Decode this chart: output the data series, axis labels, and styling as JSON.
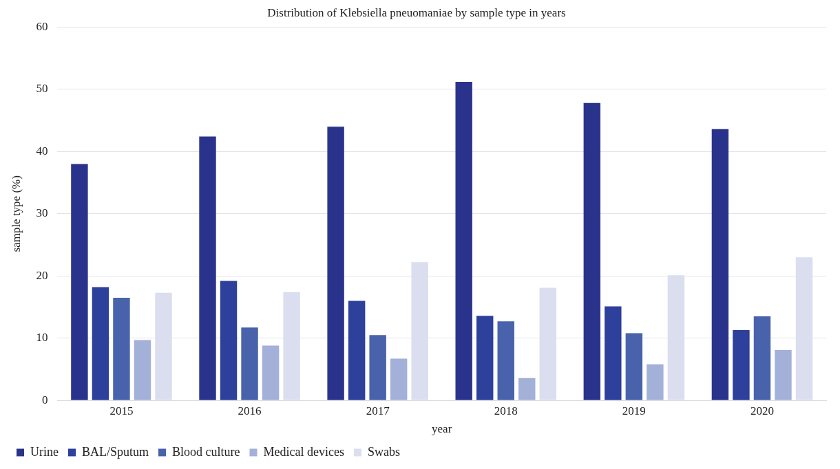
{
  "chart_data": {
    "type": "bar",
    "title": "Distribution of Klebsiella pneuomaniae by sample type in years",
    "xlabel": "year",
    "ylabel": "sample type (%)",
    "categories": [
      "2015",
      "2016",
      "2017",
      "2018",
      "2019",
      "2020"
    ],
    "series": [
      {
        "name": "Urine",
        "color": "#2a338c",
        "values": [
          38,
          42.4,
          44,
          51.2,
          47.8,
          43.6
        ]
      },
      {
        "name": "BAL/Sputum",
        "color": "#2c409c",
        "values": [
          18.2,
          19.2,
          16,
          13.6,
          15.1,
          11.3
        ]
      },
      {
        "name": "Blood culture",
        "color": "#4862ab",
        "values": [
          16.5,
          11.7,
          10.5,
          12.7,
          10.8,
          13.5
        ]
      },
      {
        "name": "Medical devices",
        "color": "#a3b0d8",
        "values": [
          9.7,
          8.8,
          6.7,
          3.6,
          5.8,
          8.1
        ]
      },
      {
        "name": "Swabs",
        "color": "#dadeee",
        "values": [
          17.3,
          17.4,
          22.2,
          18.1,
          20.1,
          23
        ]
      }
    ],
    "ylim": [
      0,
      60
    ],
    "yticks": [
      0,
      10,
      20,
      30,
      40,
      50,
      60
    ],
    "grid": "y",
    "legend": "bottom"
  }
}
